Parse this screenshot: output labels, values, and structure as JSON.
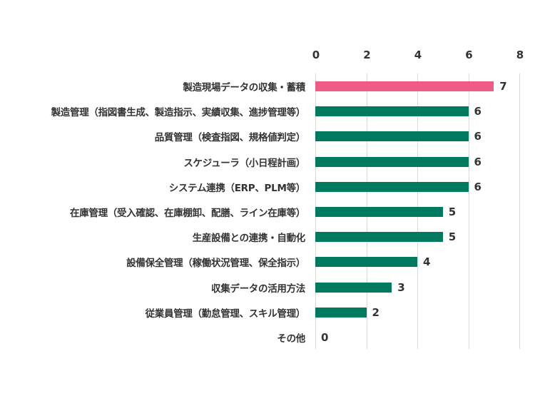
{
  "chart_data": {
    "type": "bar",
    "orientation": "horizontal",
    "title": "",
    "xlabel": "",
    "ylabel": "",
    "xlim": [
      0,
      8
    ],
    "x_ticks": [
      "0",
      "2",
      "4",
      "6",
      "8"
    ],
    "grid": true,
    "legend": null,
    "categories": [
      "製造現場データの収集・蓄積",
      "製造管理（指図書生成、製造指示、実績収集、進捗管理等）",
      "品質管理（検査指図、規格値判定）",
      "スケジューラ（小日程計画）",
      "システム連携（ERP、PLM等）",
      "在庫管理（受入確認、在庫棚卸、配膳、ライン在庫等）",
      "生産設備との連携・自動化",
      "設備保全管理（稼働状況管理、保全指示）",
      "収集データの活用方法",
      "従業員管理（勤怠管理、スキル管理）",
      "その他"
    ],
    "values": [
      7,
      6,
      6,
      6,
      6,
      5,
      5,
      4,
      3,
      2,
      0
    ],
    "value_labels": [
      "7",
      "6",
      "6",
      "6",
      "6",
      "5",
      "5",
      "4",
      "3",
      "2",
      "0"
    ],
    "colors": {
      "highlight": "#f05a86",
      "default": "#007a5e",
      "grid": "#d9d9d9",
      "text": "#333333"
    },
    "highlight_index": 0
  }
}
